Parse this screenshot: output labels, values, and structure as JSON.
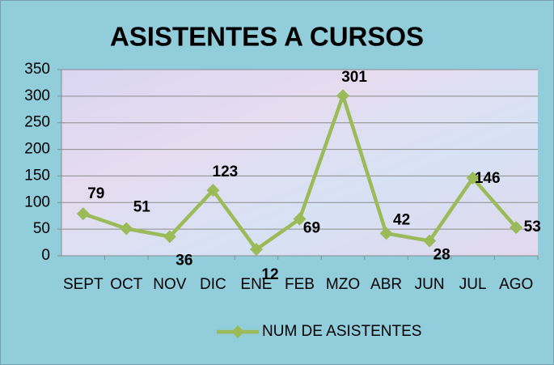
{
  "chart_data": {
    "type": "line",
    "title": "ASISTENTES A CURSOS",
    "categories": [
      "SEPT",
      "OCT",
      "NOV",
      "DIC",
      "ENE",
      "FEB",
      "MZO",
      "ABR",
      "JUN",
      "JUL",
      "AGO"
    ],
    "series": [
      {
        "name": "NUM DE ASISTENTES",
        "color": "#9bbb59",
        "values": [
          79,
          51,
          36,
          123,
          12,
          69,
          301,
          42,
          28,
          146,
          53
        ]
      }
    ],
    "ylim": [
      0,
      350
    ],
    "yticks": [
      0,
      50,
      100,
      150,
      200,
      250,
      300,
      350
    ],
    "grid": true,
    "legend": "bottom"
  }
}
